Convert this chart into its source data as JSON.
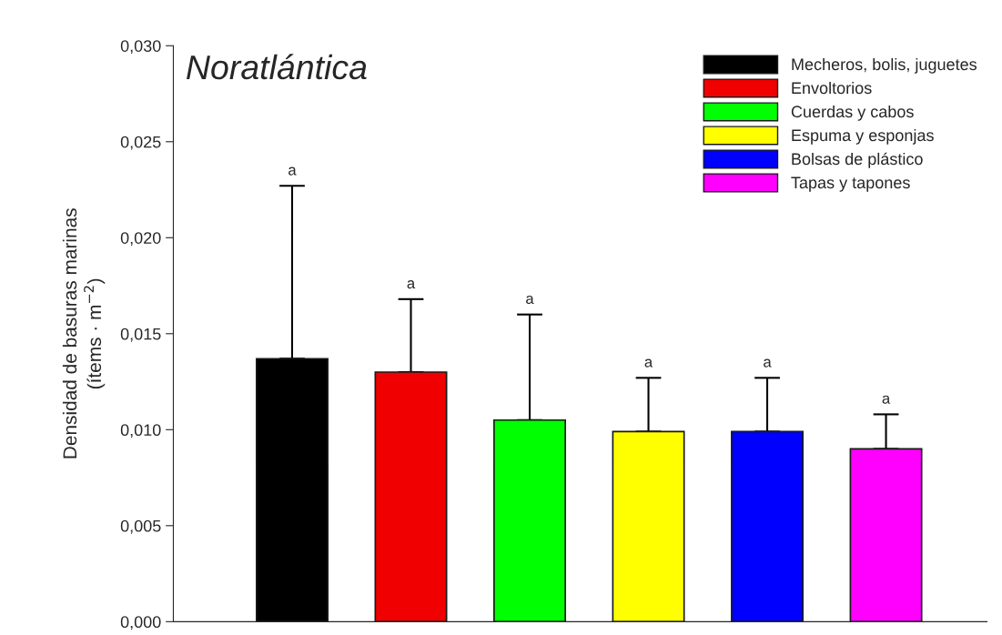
{
  "chart_data": {
    "type": "bar",
    "title": "Noratlántica",
    "ylabel": "Densidad de basuras marinas\n(ítems · m$^{−2}$)",
    "categories": [
      null,
      null,
      null,
      null,
      null,
      null
    ],
    "series": [
      {
        "name": "Mecheros, bolis, juguetes",
        "color": "#000000",
        "values": [
          0.0137,
          null,
          null,
          null,
          null,
          null
        ],
        "errors": [
          [
            0.0137,
            0.0227
          ],
          null,
          null,
          null,
          null,
          null
        ]
      },
      {
        "name": "Envoltorios",
        "color": "#f00000",
        "values": [
          null,
          0.013,
          null,
          null,
          null,
          null
        ],
        "errors": [
          null,
          [
            0.013,
            0.0168
          ],
          null,
          null,
          null,
          null
        ]
      },
      {
        "name": "Cuerdas y cabos",
        "color": "#00ff00",
        "values": [
          null,
          null,
          0.0105,
          null,
          null,
          null
        ],
        "errors": [
          null,
          null,
          [
            0.0105,
            0.016
          ],
          null,
          null,
          null
        ]
      },
      {
        "name": "Espuma y esponjas",
        "color": "#ffff00",
        "values": [
          null,
          null,
          null,
          0.0099,
          null,
          null
        ],
        "errors": [
          null,
          null,
          null,
          [
            0.0099,
            0.0127
          ],
          null,
          null
        ]
      },
      {
        "name": "Bolsas de plástico",
        "color": "#0000ff",
        "values": [
          null,
          null,
          null,
          null,
          0.0099,
          null
        ],
        "errors": [
          null,
          null,
          null,
          null,
          [
            0.0099,
            0.0127
          ],
          null
        ]
      },
      {
        "name": "Tapas y tapones",
        "color": "#ff00ff",
        "values": [
          null,
          null,
          null,
          null,
          null,
          0.009
        ],
        "errors": [
          null,
          null,
          null,
          null,
          null,
          [
            0.009,
            0.0108
          ]
        ]
      }
    ],
    "annotations": [
      "a",
      "a",
      "a",
      "a",
      "a",
      "a"
    ],
    "ylim": [
      0,
      0.03
    ],
    "yticks": [
      {
        "value": 0,
        "label": "0,000"
      },
      {
        "value": 0.005,
        "label": "0,005"
      },
      {
        "value": 0.01,
        "label": "0,010"
      },
      {
        "value": 0.015,
        "label": "0,015"
      },
      {
        "value": 0.02,
        "label": "0,020"
      },
      {
        "value": 0.025,
        "label": "0,025"
      },
      {
        "value": 0.03,
        "label": "0,030"
      }
    ],
    "tick_labels": "y",
    "legend": "top right",
    "grid": false
  }
}
